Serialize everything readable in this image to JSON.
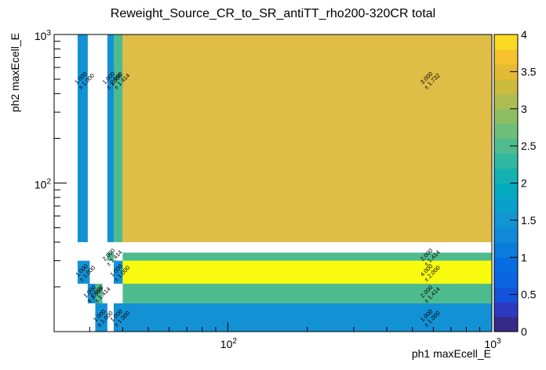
{
  "chart_data": {
    "type": "heatmap",
    "title": "Reweight_Source_CR_to_SR_antiTT_rho200-320CR total",
    "xlabel": "ph1 maxEcell_E",
    "ylabel": "ph2 maxEcell_E",
    "x_scale": "log",
    "y_scale": "log",
    "xlim": [
      22,
      1000
    ],
    "ylim": [
      10,
      1000
    ],
    "x_ticks": [
      {
        "value": 100,
        "label": "10",
        "exp": "2"
      },
      {
        "value": 1000,
        "label": "10",
        "exp": "3"
      }
    ],
    "y_ticks": [
      {
        "value": 100,
        "label": "10",
        "exp": "2"
      },
      {
        "value": 1000,
        "label": "10",
        "exp": "3"
      }
    ],
    "zlim": [
      0,
      4
    ],
    "colorbar_ticks": [
      "0",
      "0.5",
      "1",
      "1.5",
      "2",
      "2.5",
      "3",
      "3.5",
      "4"
    ],
    "cells": [
      {
        "x": [
          27,
          29.5
        ],
        "y": [
          40,
          1000
        ],
        "value": 1.0,
        "error": 1.0,
        "text": "1.000",
        "err_text": "± 1.000"
      },
      {
        "x": [
          35,
          37
        ],
        "y": [
          40,
          1000
        ],
        "value": 1.0,
        "error": 1.0,
        "text": "1.000",
        "err_text": "± 1.000"
      },
      {
        "x": [
          37,
          40
        ],
        "y": [
          40,
          1000
        ],
        "value": 2.0,
        "error": 1.414,
        "text": "2.000",
        "err_text": "± 1.414"
      },
      {
        "x": [
          40,
          1000
        ],
        "y": [
          40,
          1000
        ],
        "value": 3.0,
        "error": 1.732,
        "text": "3.000",
        "err_text": "± 1.732"
      },
      {
        "x": [
          35,
          37
        ],
        "y": [
          30,
          34
        ],
        "value": 2.0,
        "error": 1.414,
        "text": "2.000",
        "err_text": "± 1.414"
      },
      {
        "x": [
          40,
          1000
        ],
        "y": [
          30,
          34
        ],
        "value": 2.0,
        "error": 1.414,
        "text": "2.000",
        "err_text": "± 1.414"
      },
      {
        "x": [
          27,
          30
        ],
        "y": [
          21,
          30
        ],
        "value": 1.0,
        "error": 1.0,
        "text": "1.000",
        "err_text": "± 1.000"
      },
      {
        "x": [
          37,
          40
        ],
        "y": [
          21,
          30
        ],
        "value": 1.0,
        "error": 1.0,
        "text": "1.000",
        "err_text": "± 1.000"
      },
      {
        "x": [
          40,
          1000
        ],
        "y": [
          21,
          30
        ],
        "value": 4.0,
        "error": 2.0,
        "text": "4.000",
        "err_text": "± 2.000"
      },
      {
        "x": [
          29.5,
          31.5
        ],
        "y": [
          15.5,
          21
        ],
        "value": 1.0,
        "error": 1.0,
        "text": "1.000",
        "err_text": "± 1.000"
      },
      {
        "x": [
          31.5,
          33.5
        ],
        "y": [
          15.5,
          21
        ],
        "value": 2.0,
        "error": 1.414,
        "text": "2.000",
        "err_text": "± 1.414"
      },
      {
        "x": [
          40,
          1000
        ],
        "y": [
          15.5,
          21
        ],
        "value": 2.0,
        "error": 1.414,
        "text": "2.000",
        "err_text": "± 1.414"
      },
      {
        "x": [
          31.5,
          35
        ],
        "y": [
          10,
          15.5
        ],
        "value": 1.0,
        "error": 1.0,
        "text": "1.000",
        "err_text": "± 1.000"
      },
      {
        "x": [
          37,
          40
        ],
        "y": [
          10,
          15.5
        ],
        "value": 1.0,
        "error": 1.0,
        "text": "1.000",
        "err_text": "± 1.000"
      },
      {
        "x": [
          40,
          1000
        ],
        "y": [
          10,
          15.5
        ],
        "value": 1.0,
        "error": 1.0,
        "text": "1.000",
        "err_text": "± 1.000"
      }
    ]
  }
}
